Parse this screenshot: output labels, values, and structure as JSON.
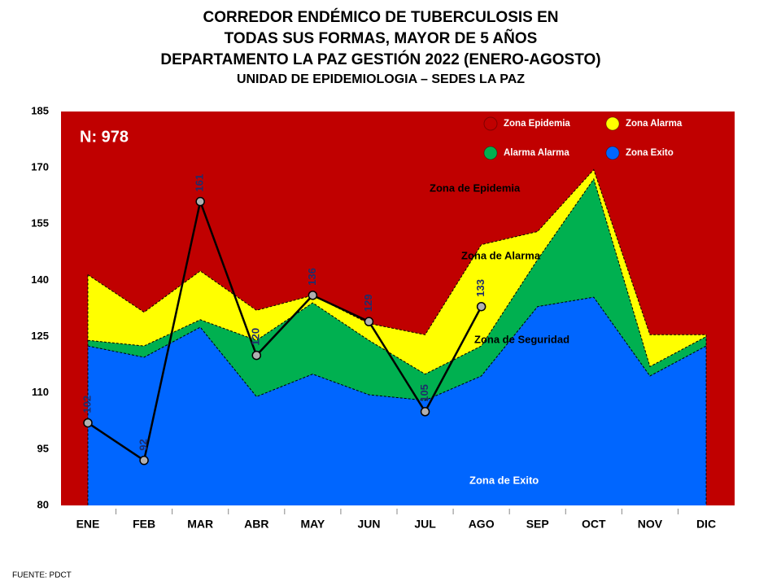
{
  "chart_data": {
    "type": "area",
    "title": [
      "CORREDOR ENDÉMICO DE TUBERCULOSIS EN",
      "TODAS SUS FORMAS, MAYOR DE 5 AÑOS",
      "DEPARTAMENTO LA PAZ GESTIÓN 2022 (ENERO-AGOSTO)",
      "UNIDAD DE EPIDEMIOLOGIA – SEDES LA PAZ"
    ],
    "categories": [
      "ENE",
      "FEB",
      "MAR",
      "ABR",
      "MAY",
      "JUN",
      "JUL",
      "AGO",
      "SEP",
      "OCT",
      "NOV",
      "DIC"
    ],
    "series": [
      {
        "name": "Zona Epidemia",
        "color": "#c00000"
      },
      {
        "name": "Zona Alarma",
        "color": "#ffff00",
        "values": [
          141.5,
          131.5,
          142.5,
          132,
          136,
          128.5,
          125.5,
          149.5,
          153,
          169.5,
          125.5,
          125.5
        ]
      },
      {
        "name": "Alarma Alarma",
        "color": "#00b050",
        "values": [
          124,
          122.5,
          129.5,
          124,
          134,
          124,
          115,
          122.5,
          145.5,
          167,
          117,
          125
        ]
      },
      {
        "name": "Zona Exito",
        "color": "#0066ff",
        "values": [
          122.5,
          119.5,
          127.5,
          109,
          115,
          109.5,
          108,
          114.5,
          133,
          135.5,
          114.5,
          122.5
        ]
      }
    ],
    "observed": {
      "color": "#000000",
      "values": [
        102,
        92,
        161,
        120,
        136,
        129,
        105,
        133,
        null,
        null,
        null,
        null
      ]
    },
    "ylim": [
      80,
      185
    ],
    "yticks": [
      80,
      95,
      110,
      125,
      140,
      155,
      170,
      185
    ],
    "grid": false,
    "annotations": {
      "n": "N: 978",
      "epidemia": "Zona de Epidemia",
      "alarma": "Zona de Alarma",
      "seguridad": "Zona de Seguridad",
      "exito": "Zona de Exito"
    },
    "source": "FUENTE:   PDCT"
  }
}
